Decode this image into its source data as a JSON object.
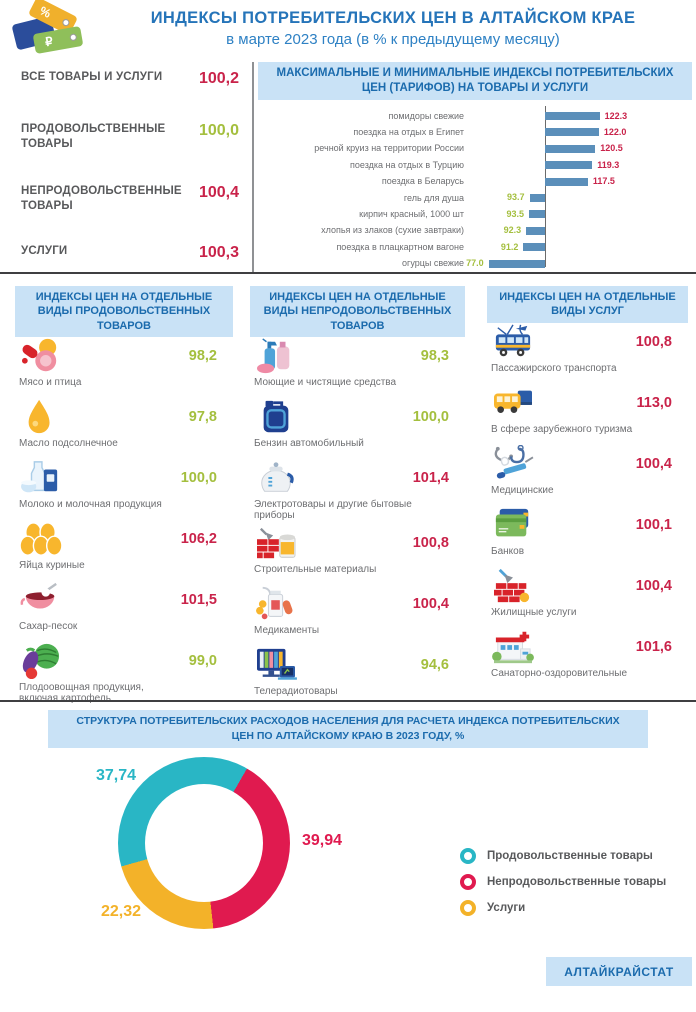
{
  "header": {
    "title": "ИНДЕКСЫ ПОТРЕБИТЕЛЬСКИХ ЦЕН В АЛТАЙСКОМ КРАЕ",
    "subtitle": "в марте 2023 года (в % к предыдущему месяцу)"
  },
  "logo": {
    "icons": [
      "blue-price-tag-icon",
      "percent-tag-icon",
      "ruble-tag-icon"
    ],
    "percent_symbol": "%",
    "ruble_symbol": "₽"
  },
  "summary": {
    "items": [
      {
        "label": "ВСЕ ТОВАРЫ И УСЛУГИ",
        "value": "100,2"
      },
      {
        "label": "ПРОДОВОЛЬСТВЕННЫЕ ТОВАРЫ",
        "value": "100,0"
      },
      {
        "label": "НЕПРОДОВОЛЬСТВЕННЫЕ ТОВАРЫ",
        "value": "100,4"
      },
      {
        "label": "УСЛУГИ",
        "value": "100,3"
      }
    ]
  },
  "columns": [
    {
      "title": "ИНДЕКСЫ ЦЕН НА ОТДЕЛЬНЫЕ ВИДЫ ПРОДОВОЛЬСТВЕННЫХ ТОВАРОВ",
      "items": [
        {
          "name": "Мясо и птица",
          "value": "98,2",
          "icon": "meat-icon"
        },
        {
          "name": "Масло подсолнечное",
          "value": "97,8",
          "icon": "oil-drop-icon"
        },
        {
          "name": "Молоко и молочная продукция",
          "value": "100,0",
          "icon": "milk-icon"
        },
        {
          "name": "Яйца куриные",
          "value": "106,2",
          "icon": "eggs-icon"
        },
        {
          "name": "Сахар-песок",
          "value": "101,5",
          "icon": "sugar-bowl-icon"
        },
        {
          "name": "Плодоовощная продукция, включая картофель",
          "value": "99,0",
          "icon": "vegetables-icon"
        }
      ]
    },
    {
      "title": "ИНДЕКСЫ ЦЕН НА ОТДЕЛЬНЫЕ ВИДЫ НЕПРОДОВОЛЬСТВЕННЫХ ТОВАРОВ",
      "items": [
        {
          "name": "Моющие и чистящие средства",
          "value": "98,3",
          "icon": "cleaning-products-icon"
        },
        {
          "name": "Бензин автомобильный",
          "value": "100,0",
          "icon": "fuel-can-icon"
        },
        {
          "name": "Электротовары и другие бытовые приборы",
          "value": "101,4",
          "icon": "kettle-icon"
        },
        {
          "name": "Строительные материалы",
          "value": "100,8",
          "icon": "building-materials-icon"
        },
        {
          "name": "Медикаменты",
          "value": "100,4",
          "icon": "medicines-icon"
        },
        {
          "name": "Телерадиотовары",
          "value": "94,6",
          "icon": "tv-radio-icon"
        }
      ]
    },
    {
      "title": "ИНДЕКСЫ ЦЕН НА ОТДЕЛЬНЫЕ ВИДЫ УСЛУГ",
      "items": [
        {
          "name": "Пассажирского транспорта",
          "value": "100,8",
          "icon": "trolleybus-icon"
        },
        {
          "name": "В сфере зарубежного туризма",
          "value": "113,0",
          "icon": "tour-bus-icon"
        },
        {
          "name": "Медицинские",
          "value": "100,4",
          "icon": "medical-icon"
        },
        {
          "name": "Банков",
          "value": "100,1",
          "icon": "bank-cards-icon"
        },
        {
          "name": "Жилищные услуги",
          "value": "100,4",
          "icon": "bricks-trowel-icon"
        },
        {
          "name": "Санаторно-оздоровительные",
          "value": "101,6",
          "icon": "sanatorium-icon"
        }
      ]
    }
  ],
  "chart_data": [
    {
      "type": "bar",
      "orientation": "horizontal",
      "title": "МАКСИМАЛЬНЫЕ И МИНИМАЛЬНЫЕ ИНДЕКСЫ ПОТРЕБИТЕЛЬСКИХ ЦЕН (ТАРИФОВ) НА ТОВАРЫ И УСЛУГИ",
      "baseline": 100,
      "bar_color": "#5b8fba",
      "max_label_color": "#c9234a",
      "min_label_color": "#a4bf3e",
      "items": [
        {
          "label": "помидоры свежие",
          "value": 122.3,
          "display": "122.3"
        },
        {
          "label": "поездка на отдых в Египет",
          "value": 122.0,
          "display": "122.0"
        },
        {
          "label": "речной круиз на территории России",
          "value": 120.5,
          "display": "120.5"
        },
        {
          "label": "поездка на отдых в Турцию",
          "value": 119.3,
          "display": "119.3"
        },
        {
          "label": "поездка в Беларусь",
          "value": 117.5,
          "display": "117.5"
        },
        {
          "label": "гель для душа",
          "value": 93.7,
          "display": "93.7"
        },
        {
          "label": "кирпич красный, 1000 шт",
          "value": 93.5,
          "display": "93.5"
        },
        {
          "label": "хлопья из злаков (сухие завтраки)",
          "value": 92.3,
          "display": "92.3"
        },
        {
          "label": "поездка в плацкартном вагоне",
          "value": 91.2,
          "display": "91.2"
        },
        {
          "label": "огурцы свежие",
          "value": 77.0,
          "display": "77.0"
        }
      ]
    },
    {
      "type": "pie",
      "variant": "donut",
      "title": "СТРУКТУРА ПОТРЕБИТЕЛЬСКИХ РАСХОДОВ НАСЕЛЕНИЯ ДЛЯ РАСЧЕТА ИНДЕКСА ПОТРЕБИТЕЛЬСКИХ ЦЕН ПО АЛТАЙСКОМУ КРАЮ В 2023 ГОДУ, %",
      "start_angle_deg": 30,
      "draw_order": [
        1,
        2,
        0
      ],
      "slices": [
        {
          "label": "Продовольственные товары",
          "value": 37.74,
          "display": "37,74",
          "color": "#29b6c5"
        },
        {
          "label": "Непродовольственные товары",
          "value": 39.94,
          "display": "39,94",
          "color": "#e01a4f"
        },
        {
          "label": "Услуги",
          "value": 22.32,
          "display": "22,32",
          "color": "#f3b229"
        }
      ],
      "legend_position": "right"
    }
  ],
  "footer": {
    "brand": "АЛТАЙКРАЙСТАТ"
  },
  "colors": {
    "accent_blue": "#2574b9",
    "band_background": "#c9e2f6",
    "band_text": "#1b6bad",
    "up": "#c9234a",
    "down": "#a4bf3e",
    "bar": "#5b8fba",
    "text_gray": "#6d6e71"
  }
}
